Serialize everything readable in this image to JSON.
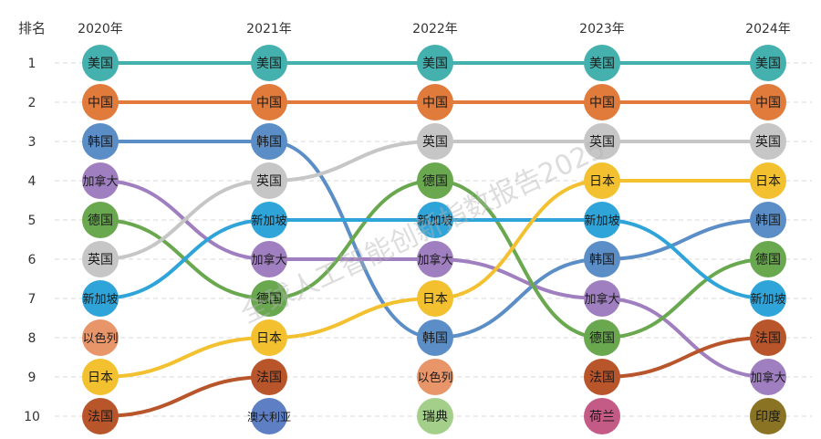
{
  "chart_data": {
    "type": "bump",
    "title": "",
    "rank_header": "排名",
    "years": [
      "2020年",
      "2021年",
      "2022年",
      "2023年",
      "2024年"
    ],
    "ranks": [
      "1",
      "2",
      "3",
      "4",
      "5",
      "6",
      "7",
      "8",
      "9",
      "10"
    ],
    "watermark": "全球人工智能创新指数报告2025",
    "series": [
      {
        "name": "美国",
        "color": "#45b1ae",
        "ranks": [
          1,
          1,
          1,
          1,
          1
        ]
      },
      {
        "name": "中国",
        "color": "#e07b3c",
        "ranks": [
          2,
          2,
          2,
          2,
          2
        ]
      },
      {
        "name": "韩国",
        "color": "#5b8ec6",
        "ranks": [
          3,
          3,
          8,
          6,
          5
        ]
      },
      {
        "name": "加拿大",
        "color": "#a07fc0",
        "ranks": [
          4,
          6,
          6,
          7,
          9
        ]
      },
      {
        "name": "德国",
        "color": "#69a84f",
        "ranks": [
          5,
          7,
          4,
          8,
          6
        ]
      },
      {
        "name": "英国",
        "color": "#c6c6c6",
        "ranks": [
          6,
          4,
          3,
          3,
          3
        ]
      },
      {
        "name": "新加坡",
        "color": "#2fa4d9",
        "ranks": [
          7,
          5,
          5,
          5,
          7
        ]
      },
      {
        "name": "日本",
        "color": "#f3c12f",
        "ranks": [
          9,
          8,
          7,
          4,
          4
        ]
      },
      {
        "name": "法国",
        "color": "#b9552a",
        "ranks": [
          10,
          9,
          null,
          9,
          8
        ]
      }
    ],
    "standalone": [
      {
        "name": "以色列",
        "color": "#e8956a",
        "rank": 8,
        "year_index": 0
      },
      {
        "name": "澳大利亚",
        "color": "#5e7fc4",
        "rank": 10,
        "year_index": 1
      },
      {
        "name": "以色列",
        "color": "#e8956a",
        "rank": 9,
        "year_index": 2
      },
      {
        "name": "瑞典",
        "color": "#a3cf8a",
        "rank": 10,
        "year_index": 2
      },
      {
        "name": "荷兰",
        "color": "#c45a86",
        "rank": 10,
        "year_index": 3
      },
      {
        "name": "印度",
        "color": "#8a7424",
        "rank": 10,
        "year_index": 4
      }
    ]
  }
}
